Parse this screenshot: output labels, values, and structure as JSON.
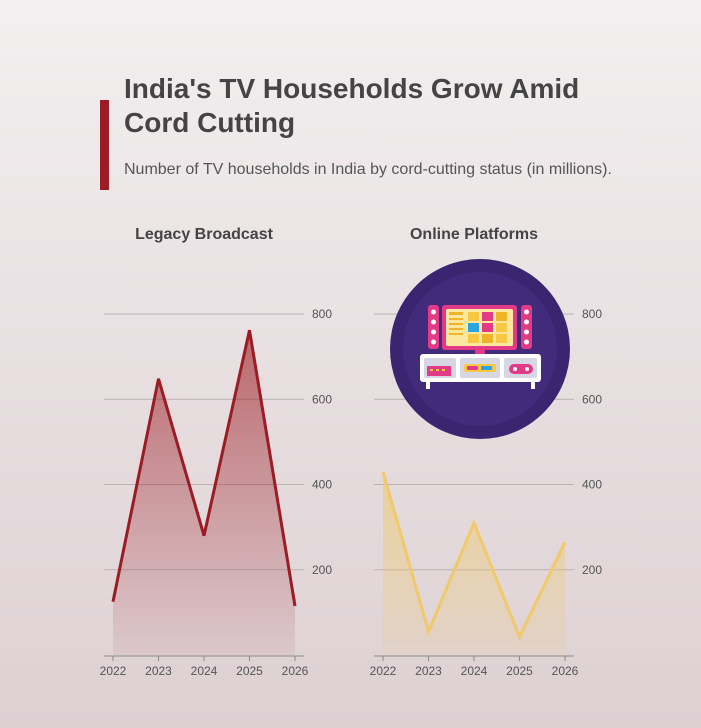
{
  "header": {
    "title": "India's TV Households Grow Amid Cord Cutting",
    "subtitle": "Number of TV households in India by cord-cutting status (in millions)."
  },
  "colors": {
    "accent": "#9b1c24",
    "legacy": "#9b1c24",
    "online": "#f0c96a",
    "badge_bg": "#3b2470"
  },
  "icon": "tv-entertainment-icon",
  "chart_data": [
    {
      "type": "area",
      "title": "Legacy Broadcast",
      "x": [
        "2022",
        "2023",
        "2024",
        "2025",
        "2026"
      ],
      "values": [
        125,
        648,
        280,
        762,
        115
      ],
      "ylim": [
        0,
        800
      ],
      "yticks": [
        "200",
        "400",
        "600",
        "800"
      ],
      "grid": true,
      "y_axis_side": "right"
    },
    {
      "type": "area",
      "title": "Online Platforms",
      "x": [
        "2022",
        "2023",
        "2024",
        "2025",
        "2026"
      ],
      "values": [
        430,
        55,
        310,
        42,
        265
      ],
      "ylim": [
        0,
        800
      ],
      "yticks": [
        "200",
        "400",
        "600",
        "800"
      ],
      "grid": true,
      "y_axis_side": "right"
    }
  ]
}
